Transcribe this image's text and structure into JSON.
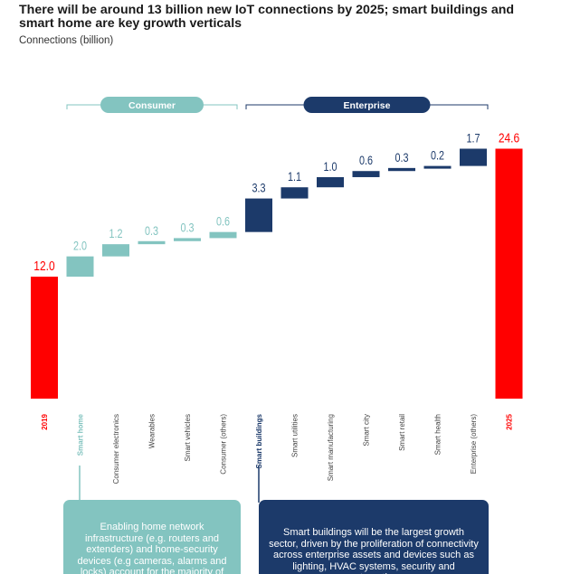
{
  "title": "There will be around 13 billion new IoT connections by 2025; smart buildings and smart home are key growth verticals",
  "ylabel": "Connections (billion)",
  "colors": {
    "total": "#ff0000",
    "consumer": "#83c4c0",
    "enterprise": "#1c3a6a"
  },
  "groups": {
    "consumer": "Consumer",
    "enterprise": "Enterprise"
  },
  "callouts": {
    "consumer": "Enabling home network infrastructure (e.g. routers and extenders) and home-security devices (e.g cameras, alarms and locks) account for the majority of devices",
    "enterprise": "Smart buildings will be the largest growth sector, driven by the proliferation of connectivity across enterprise assets and devices such as lighting, HVAC systems, security and automation"
  },
  "chart_data": {
    "type": "bar",
    "subtype": "waterfall",
    "title": "There will be around 13 billion new IoT connections by 2025; smart buildings and smart home are key growth verticals",
    "ylabel": "Connections (billion)",
    "xlabel": "",
    "categories": [
      "2019",
      "Smart home",
      "Consumer electronics",
      "Wearables",
      "Smart vehicles",
      "Consumer (others)",
      "Smart buildings",
      "Smart utilities",
      "Smart manufacturing",
      "Smart city",
      "Smart retail",
      "Smart health",
      "Enterprise (others)",
      "2025"
    ],
    "values": [
      12.0,
      2.0,
      1.2,
      0.3,
      0.3,
      0.6,
      3.3,
      1.1,
      1.0,
      0.6,
      0.3,
      0.2,
      1.7,
      24.6
    ],
    "value_labels": [
      "12.0",
      "2.0",
      "1.2",
      "0.3",
      "0.3",
      "0.6",
      "3.3",
      "1.1",
      "1.0",
      "0.6",
      "0.3",
      "0.2",
      "1.7",
      "24.6"
    ],
    "kinds": [
      "total",
      "consumer",
      "consumer",
      "consumer",
      "consumer",
      "consumer",
      "enterprise",
      "enterprise",
      "enterprise",
      "enterprise",
      "enterprise",
      "enterprise",
      "enterprise",
      "total"
    ],
    "grid": false,
    "legend": "none"
  }
}
